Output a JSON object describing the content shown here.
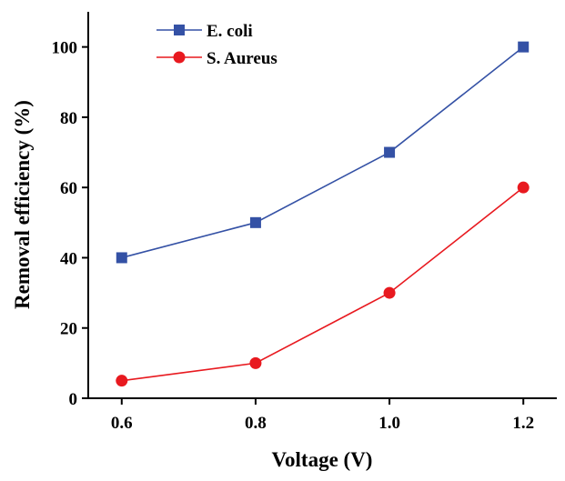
{
  "chart_data": {
    "type": "line",
    "xlabel": "Voltage (V)",
    "ylabel": "Removal efficiency (%)",
    "x": [
      0.6,
      0.8,
      1.0,
      1.2
    ],
    "x_tick_labels": [
      "0.6",
      "0.8",
      "1.0",
      "1.2"
    ],
    "xlim": [
      0.55,
      1.25
    ],
    "ylim": [
      0,
      110
    ],
    "y_ticks": [
      0,
      20,
      40,
      60,
      80,
      100
    ],
    "y_tick_labels": [
      "0",
      "20",
      "40",
      "60",
      "80",
      "100"
    ],
    "grid": false,
    "legend_position": "top-left",
    "series": [
      {
        "name": "E. coli",
        "values": [
          40,
          50,
          70,
          100
        ],
        "color": "#3451a5",
        "marker": "square"
      },
      {
        "name": "S. Aureus",
        "values": [
          5,
          10,
          30,
          60
        ],
        "color": "#e8191f",
        "marker": "circle"
      }
    ]
  }
}
